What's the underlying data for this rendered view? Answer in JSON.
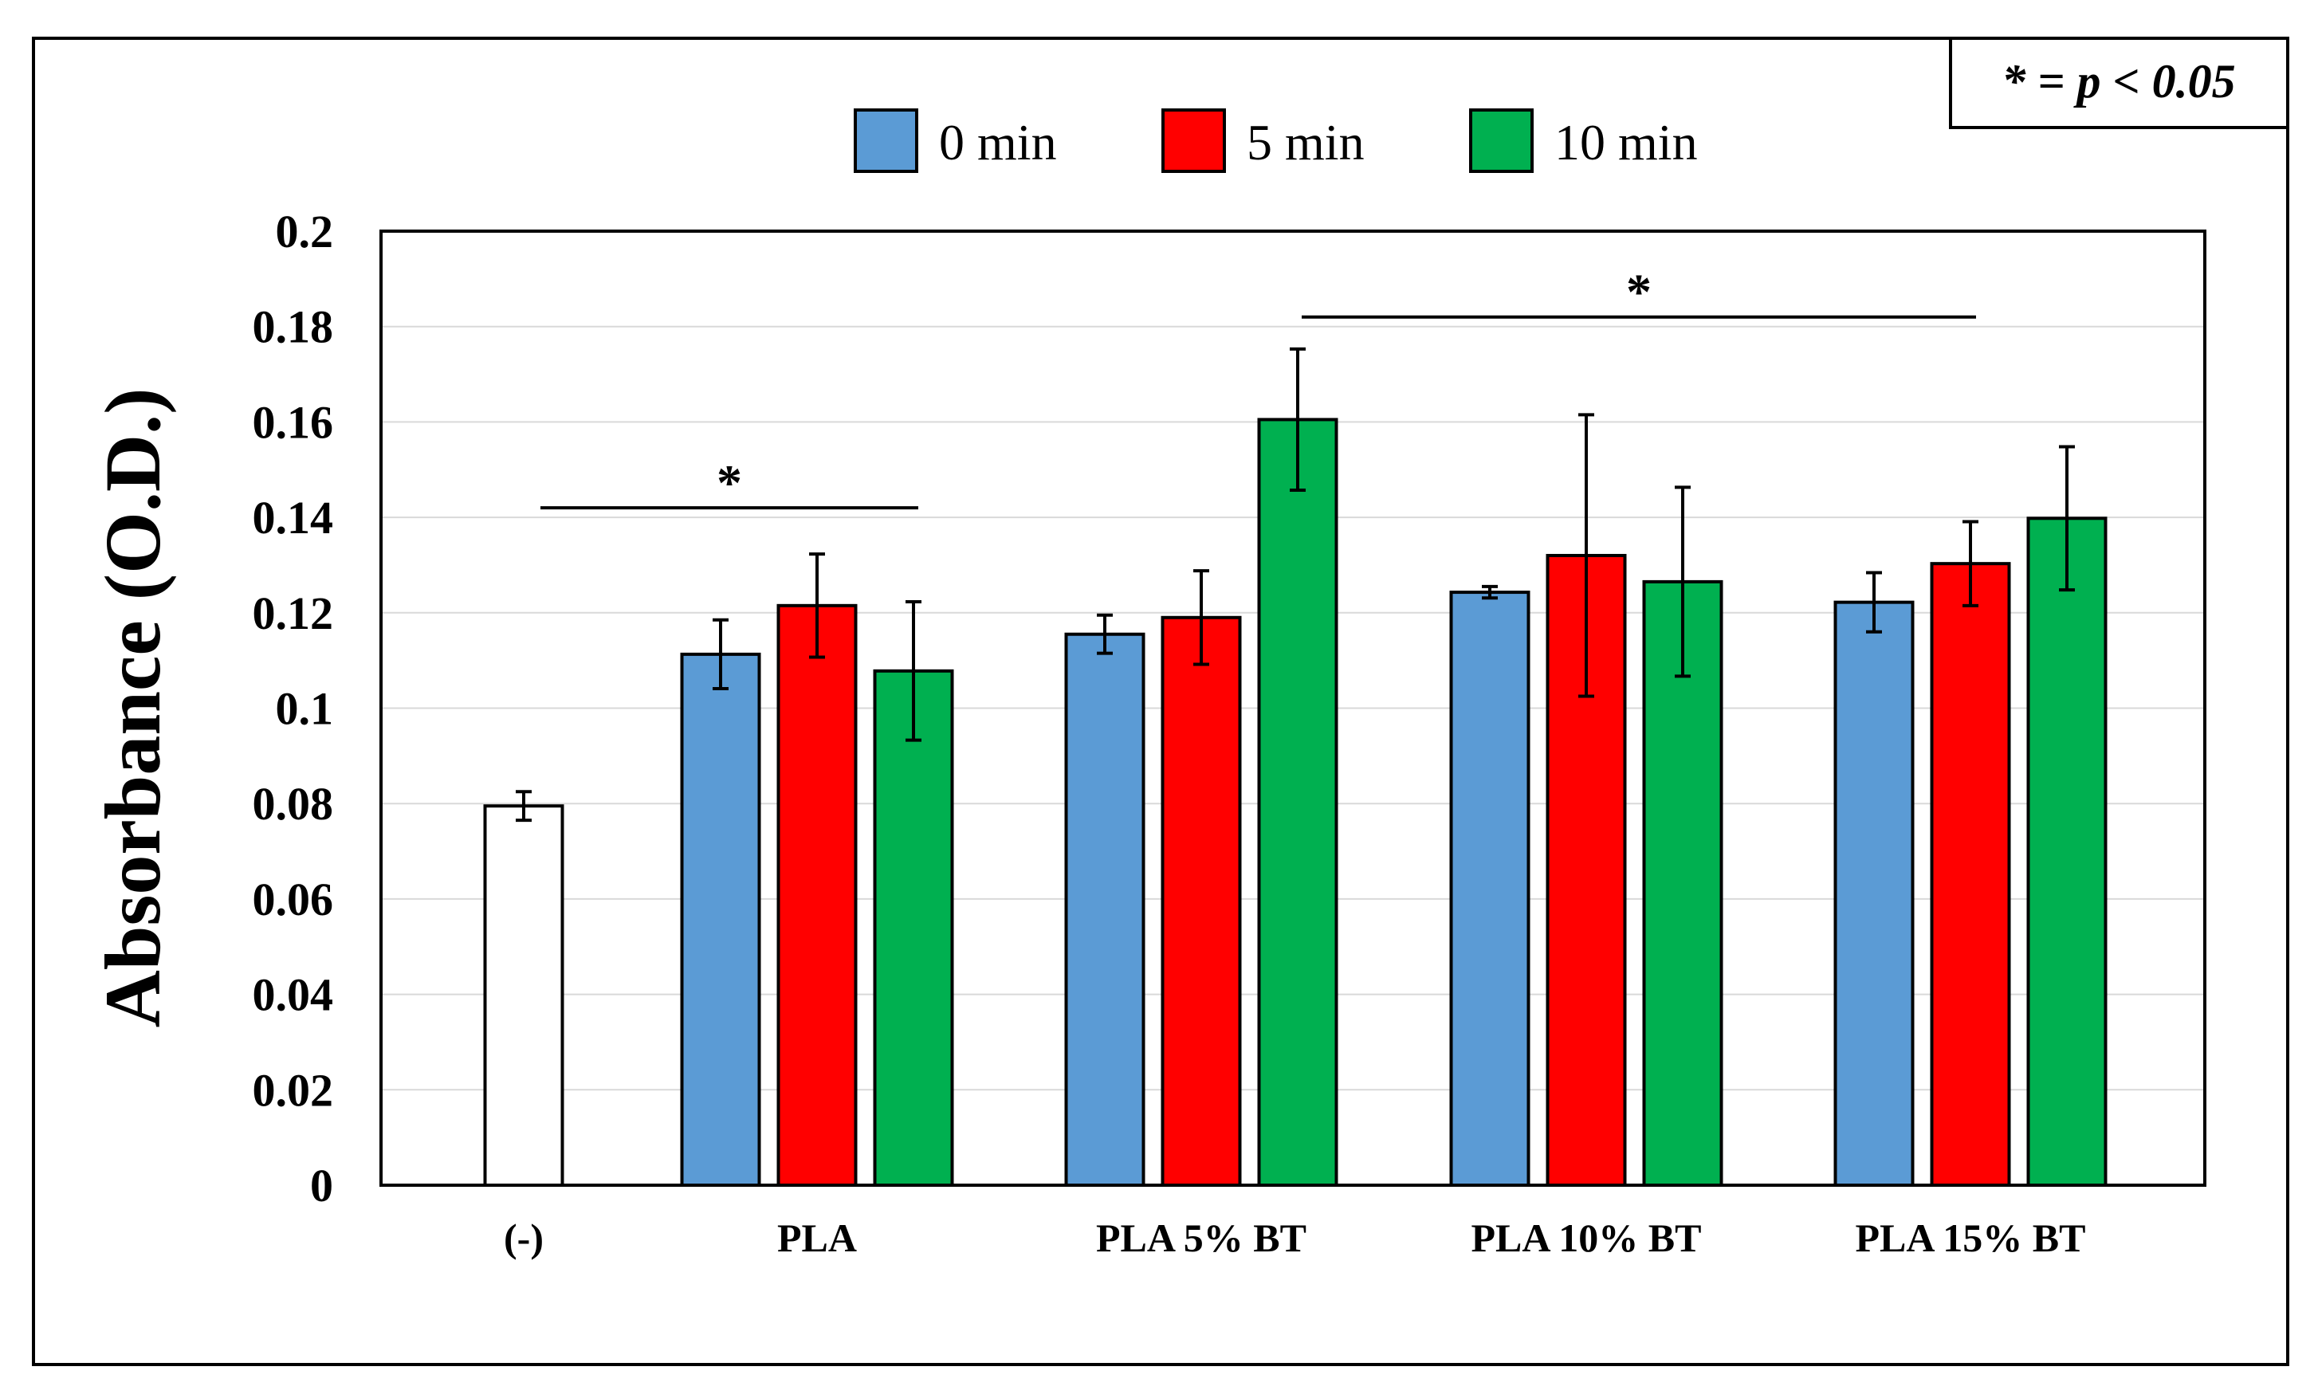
{
  "significance_note": "* = p < 0.05",
  "chart_data": {
    "type": "bar",
    "title": "",
    "xlabel": "",
    "ylabel": "Absorbance (O.D.)",
    "ylim": [
      0,
      0.2
    ],
    "yticks": [
      "0",
      "0.02",
      "0.04",
      "0.06",
      "0.08",
      "0.1",
      "0.12",
      "0.14",
      "0.16",
      "0.18",
      "0.2"
    ],
    "grid": true,
    "legend_position": "top",
    "categories": [
      "(-)",
      "PLA",
      "PLA 5% BT",
      "PLA 10% BT",
      "PLA 15% BT"
    ],
    "control": {
      "value": 0.0795,
      "error": 0.003,
      "color": "#ffffff"
    },
    "series": [
      {
        "name": "0 min",
        "color": "#5b9bd5",
        "values": [
          null,
          0.1113,
          0.1155,
          0.1243,
          0.1222
        ],
        "errors": [
          null,
          0.0072,
          0.004,
          0.0012,
          0.0062
        ]
      },
      {
        "name": "5 min",
        "color": "#ff0000",
        "values": [
          null,
          0.1215,
          0.119,
          0.132,
          0.1303
        ],
        "errors": [
          null,
          0.0108,
          0.0098,
          0.0295,
          0.0088
        ]
      },
      {
        "name": "10 min",
        "color": "#00b050",
        "values": [
          null,
          0.1078,
          0.1605,
          0.1265,
          0.1398
        ],
        "errors": [
          null,
          0.0145,
          0.0148,
          0.0198,
          0.015
        ]
      }
    ],
    "significance": [
      {
        "label": "*",
        "from": "(-)",
        "to": "PLA",
        "y": 0.142
      },
      {
        "label": "*",
        "from": "PLA 5% BT",
        "to": "PLA 15% BT",
        "y": 0.182
      }
    ]
  }
}
